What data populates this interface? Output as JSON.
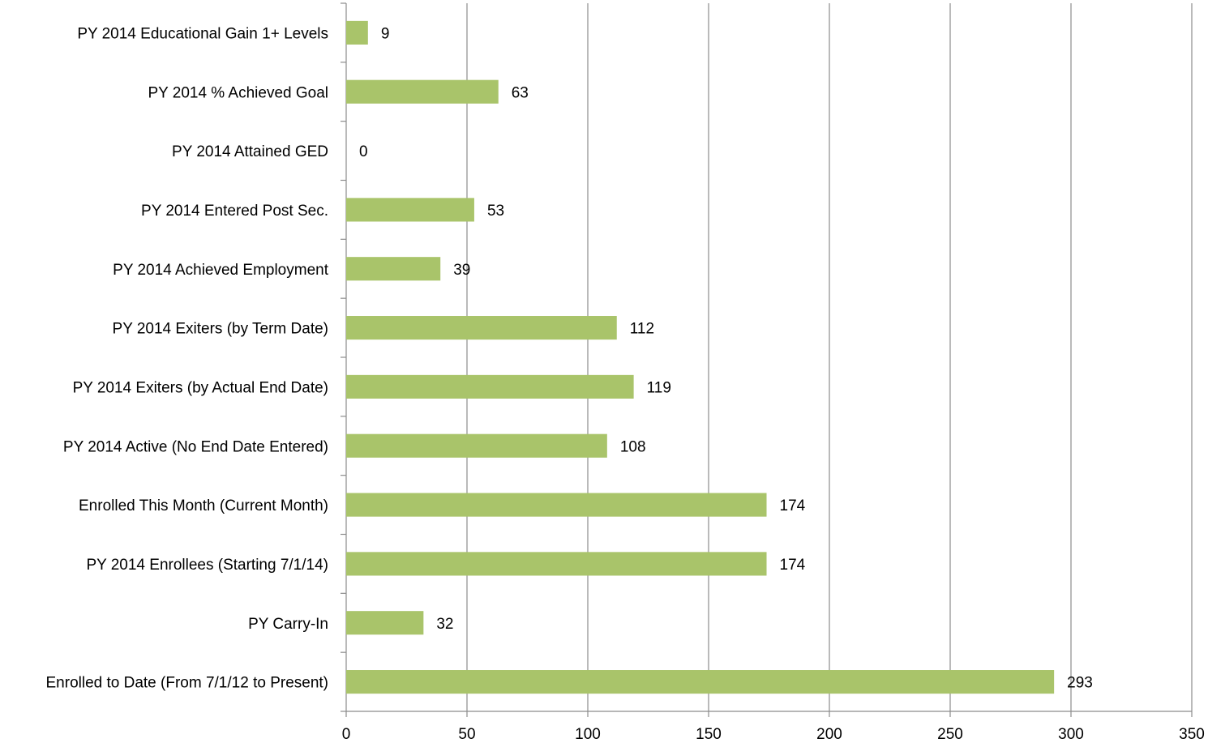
{
  "chart_data": {
    "type": "bar",
    "orientation": "horizontal",
    "categories": [
      "PY 2014 Educational Gain 1+ Levels",
      "PY 2014  % Achieved Goal",
      "PY 2014 Attained GED",
      "PY 2014 Entered Post Sec.",
      "PY 2014 Achieved Employment",
      "PY 2014 Exiters (by Term Date)",
      "PY 2014 Exiters (by Actual End Date)",
      "PY 2014 Active (No End Date Entered)",
      "Enrolled This Month (Current Month)",
      "PY 2014 Enrollees (Starting 7/1/14)",
      "PY Carry-In",
      "Enrolled to Date (From 7/1/12 to Present)"
    ],
    "values": [
      9,
      63,
      0,
      53,
      39,
      112,
      119,
      108,
      174,
      174,
      32,
      293
    ],
    "data_labels": [
      "9",
      "63",
      "0",
      "53",
      "39",
      "112",
      "119",
      "108",
      "174",
      "174",
      "32",
      "293"
    ],
    "x_ticks": [
      0,
      50,
      100,
      150,
      200,
      250,
      300,
      350
    ],
    "x_tick_labels": [
      "0",
      "50",
      "100",
      "150",
      "200",
      "250",
      "300",
      "350"
    ],
    "xlim": [
      0,
      350
    ],
    "title": "",
    "xlabel": "",
    "ylabel": "",
    "grid": "vertical",
    "legend": "none",
    "colors": {
      "bar": "#a9c46a",
      "grid": "#8c8c8c",
      "text": "#000000"
    }
  }
}
